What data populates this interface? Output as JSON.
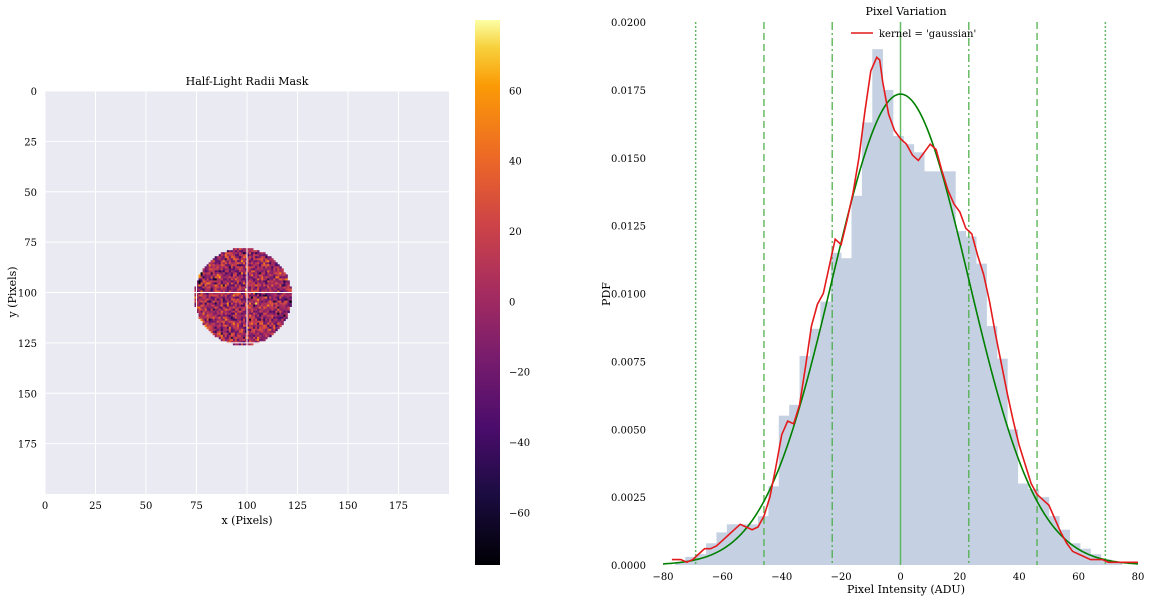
{
  "chart_data": [
    {
      "type": "heatmap",
      "title": "Half-Light Radii Mask",
      "xlabel": "x (Pixels)",
      "ylabel": "y (Pixels)",
      "xlim": [
        0,
        200
      ],
      "ylim": [
        200,
        0
      ],
      "xticks": [
        "0",
        "25",
        "50",
        "75",
        "100",
        "125",
        "150",
        "175"
      ],
      "yticks": [
        "0",
        "25",
        "50",
        "75",
        "100",
        "125",
        "150",
        "175"
      ],
      "grid": true,
      "colormap": "inferno",
      "colorbar": {
        "range": [
          -75,
          80
        ],
        "ticks": [
          "60",
          "40",
          "20",
          "0",
          "−20",
          "−40",
          "−60"
        ]
      },
      "mask": {
        "shape": "ellipse",
        "center": [
          98,
          102
        ],
        "semi_axes": [
          24,
          24
        ],
        "rotation_deg": 35
      },
      "value_range": [
        -75,
        80
      ]
    },
    {
      "type": "bar",
      "subtype": "histogram_with_density",
      "title": "Pixel Variation",
      "xlabel": "Pixel Intensity (ADU)",
      "ylabel": "PDF",
      "xlim": [
        -80,
        80
      ],
      "ylim": [
        0,
        0.02
      ],
      "xticks": [
        "−80",
        "−60",
        "−40",
        "−20",
        "0",
        "20",
        "40",
        "60",
        "80"
      ],
      "yticks": [
        "0.0000",
        "0.0025",
        "0.0050",
        "0.0075",
        "0.0100",
        "0.0125",
        "0.0150",
        "0.0175",
        "0.0200"
      ],
      "grid": false,
      "legend_position": "top-center",
      "histogram": {
        "bins": [
          [
            -76,
            -72.5,
            0.0001
          ],
          [
            -72.5,
            -69,
            0.0003
          ],
          [
            -69,
            -65.5,
            0.0004
          ],
          [
            -65.5,
            -62,
            0.0008
          ],
          [
            -62,
            -58.5,
            0.0012
          ],
          [
            -58.5,
            -55,
            0.0015
          ],
          [
            -55,
            -51.5,
            0.0015
          ],
          [
            -51.5,
            -48,
            0.0015
          ],
          [
            -48,
            -44.5,
            0.0018
          ],
          [
            -44.5,
            -41,
            0.0029
          ],
          [
            -41,
            -37.5,
            0.0055
          ],
          [
            -37.5,
            -34,
            0.0059
          ],
          [
            -34,
            -30.5,
            0.0077
          ],
          [
            -30.5,
            -27,
            0.0087
          ],
          [
            -27,
            -23.5,
            0.0097
          ],
          [
            -23.5,
            -20,
            0.0115
          ],
          [
            -20,
            -16.5,
            0.0113
          ],
          [
            -16.5,
            -13,
            0.0136
          ],
          [
            -13,
            -9.5,
            0.0163
          ],
          [
            -9.5,
            -6,
            0.019
          ],
          [
            -6,
            -2.5,
            0.0175
          ],
          [
            -2.5,
            1,
            0.0158
          ],
          [
            1,
            4.5,
            0.0155
          ],
          [
            4.5,
            8,
            0.0152
          ],
          [
            8,
            11.5,
            0.0145
          ],
          [
            11.5,
            15,
            0.0145
          ],
          [
            15,
            18.5,
            0.0145
          ],
          [
            18.5,
            22,
            0.0123
          ],
          [
            22,
            25.5,
            0.0121
          ],
          [
            25.5,
            29,
            0.0111
          ],
          [
            29,
            32.5,
            0.0088
          ],
          [
            32.5,
            36,
            0.0076
          ],
          [
            36,
            39.5,
            0.005
          ],
          [
            39.5,
            43,
            0.003
          ],
          [
            43,
            46.5,
            0.0028
          ],
          [
            46.5,
            50,
            0.0025
          ],
          [
            50,
            53.5,
            0.0018
          ],
          [
            53.5,
            57,
            0.0013
          ],
          [
            57,
            60.5,
            0.0008
          ],
          [
            60.5,
            64,
            0.0006
          ],
          [
            64,
            67.5,
            0.0004
          ],
          [
            67.5,
            71,
            0.0002
          ],
          [
            71,
            74.5,
            0.0001
          ]
        ]
      },
      "series": [
        {
          "name": "kernel = 'gaussian'",
          "color": "#e41a1c",
          "x": [
            -77,
            -74,
            -72,
            -70,
            -68,
            -66,
            -64,
            -62,
            -60,
            -58,
            -56,
            -54,
            -52,
            -50,
            -48,
            -46,
            -44,
            -42,
            -40,
            -38,
            -36,
            -34,
            -32,
            -30,
            -28,
            -26,
            -24,
            -22,
            -20,
            -18,
            -16,
            -14,
            -12,
            -10,
            -8,
            -7,
            -6,
            -5,
            -4,
            -2,
            0,
            2,
            4,
            6,
            8,
            10,
            12,
            14,
            16,
            18,
            20,
            22,
            24,
            26,
            28,
            30,
            32,
            34,
            36,
            38,
            40,
            42,
            44,
            46,
            48,
            50,
            52,
            54,
            56,
            58,
            60,
            62,
            64,
            66,
            68,
            70,
            72,
            74,
            76,
            78,
            80
          ],
          "y": [
            0.0002,
            0.0002,
            0.0001,
            0.0002,
            0.0004,
            0.0006,
            0.0006,
            0.0007,
            0.0009,
            0.0011,
            0.0013,
            0.0015,
            0.0014,
            0.0013,
            0.0014,
            0.0018,
            0.0025,
            0.0036,
            0.0048,
            0.0053,
            0.0052,
            0.0059,
            0.0073,
            0.0088,
            0.0096,
            0.01,
            0.011,
            0.012,
            0.0118,
            0.0127,
            0.0137,
            0.015,
            0.0167,
            0.0182,
            0.0187,
            0.0186,
            0.0178,
            0.0172,
            0.0166,
            0.016,
            0.0157,
            0.0155,
            0.0151,
            0.0149,
            0.0152,
            0.0155,
            0.0153,
            0.0145,
            0.0138,
            0.0133,
            0.013,
            0.0124,
            0.0122,
            0.0114,
            0.0107,
            0.0097,
            0.0085,
            0.0074,
            0.0063,
            0.0053,
            0.0044,
            0.0037,
            0.003,
            0.0026,
            0.0024,
            0.0022,
            0.0017,
            0.0012,
            0.0008,
            0.0005,
            0.0004,
            0.0003,
            0.0002,
            0.0002,
            0.0002,
            0.0001,
            0.0001,
            0.0001,
            0.0001,
            0.0001,
            0.0001
          ]
        },
        {
          "color": "#008000",
          "normal": {
            "mu": 0,
            "sigma": 23
          }
        }
      ],
      "vlines": [
        {
          "x": 0,
          "style": "solid"
        },
        {
          "x": -23,
          "style": "dashdot"
        },
        {
          "x": 23,
          "style": "dashdot"
        },
        {
          "x": -46,
          "style": "dashed"
        },
        {
          "x": 46,
          "style": "dashed"
        },
        {
          "x": -69,
          "style": "dotted"
        },
        {
          "x": 69,
          "style": "dotted"
        }
      ]
    }
  ],
  "colors": {
    "axes_bg": "#eaeaf2",
    "grid": "#ffffff",
    "hist": "#c5d1e2",
    "kde": "#e41a1c",
    "normal": "#008000",
    "vline": "#4daf4a"
  }
}
